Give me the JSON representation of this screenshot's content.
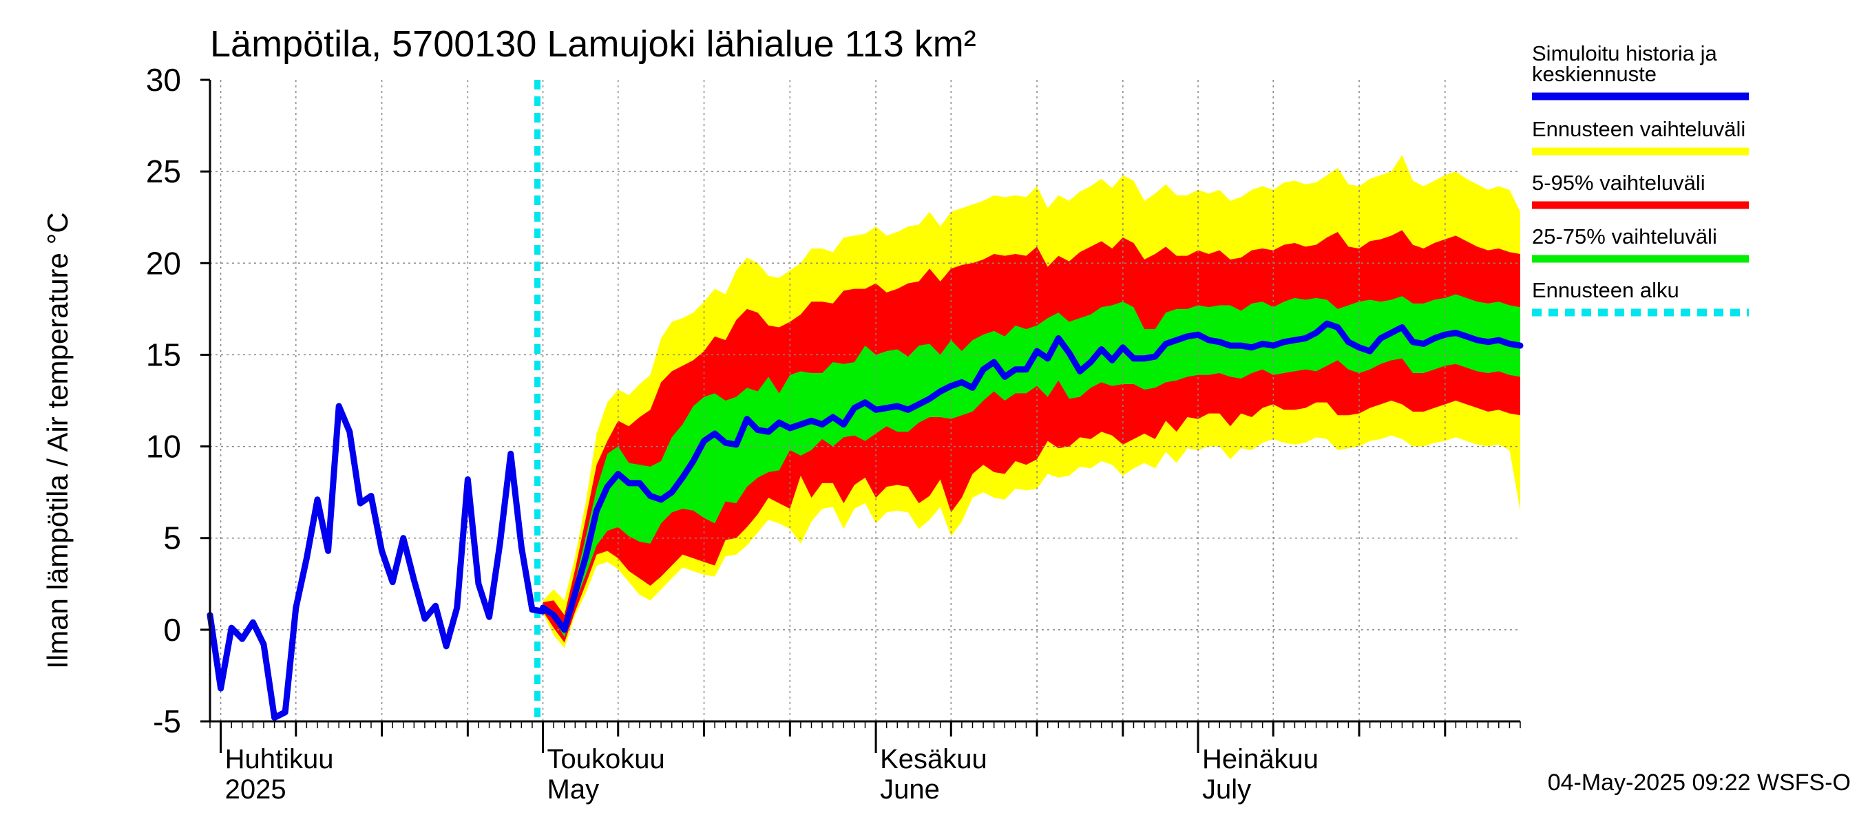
{
  "chart_data": {
    "type": "area",
    "title": "Lämpötila, 5700130 Lamujoki lähialue 113 km²",
    "ylabel": "Ilman lämpötila / Air temperature   °C",
    "ylim": [
      -5,
      30
    ],
    "yticks": [
      -5,
      0,
      5,
      10,
      15,
      20,
      25,
      30
    ],
    "ytick_labels": [
      "-5",
      "0",
      "5",
      "10",
      "15",
      "20",
      "25",
      "30"
    ],
    "xlim": [
      "2025-03-31",
      "2025-07-31"
    ],
    "month_labels": [
      {
        "date": "2025-04-01",
        "fi": "Huhtikuu",
        "en": "2025"
      },
      {
        "date": "2025-05-01",
        "fi": "Toukokuu",
        "en": "May"
      },
      {
        "date": "2025-06-01",
        "fi": "Kesäkuu",
        "en": "June"
      },
      {
        "date": "2025-07-01",
        "fi": "Heinäkuu",
        "en": "July"
      }
    ],
    "forecast_start": "2025-05-01",
    "grid": true,
    "legend_position": "right",
    "legend": [
      {
        "label": "Simuloitu historia ja keskiennuste",
        "color": "#0000ee",
        "style": "solid"
      },
      {
        "label": "Ennusteen vaihteluväli",
        "color": "#ffff00",
        "style": "solid"
      },
      {
        "label": "5-95% vaihteluväli",
        "color": "#ff0000",
        "style": "solid"
      },
      {
        "label": "25-75% vaihteluväli",
        "color": "#00ee00",
        "style": "solid"
      },
      {
        "label": "Ennusteen alku",
        "color": "#00e5ee",
        "style": "dashed"
      }
    ],
    "history": {
      "name": "Simuloitu historia ja keskiennuste",
      "x": [
        "2025-03-31",
        "2025-04-01",
        "2025-04-02",
        "2025-04-03",
        "2025-04-04",
        "2025-04-05",
        "2025-04-06",
        "2025-04-07",
        "2025-04-08",
        "2025-04-09",
        "2025-04-10",
        "2025-04-11",
        "2025-04-12",
        "2025-04-13",
        "2025-04-14",
        "2025-04-15",
        "2025-04-16",
        "2025-04-17",
        "2025-04-18",
        "2025-04-19",
        "2025-04-20",
        "2025-04-21",
        "2025-04-22",
        "2025-04-23",
        "2025-04-24",
        "2025-04-25",
        "2025-04-26",
        "2025-04-27",
        "2025-04-28",
        "2025-04-29",
        "2025-04-30",
        "2025-05-01"
      ],
      "values": [
        0.8,
        -3.2,
        0.1,
        -0.5,
        0.4,
        -0.8,
        -4.8,
        -4.5,
        1.2,
        3.9,
        7.1,
        4.3,
        12.2,
        10.8,
        6.9,
        7.3,
        4.3,
        2.6,
        5.0,
        2.7,
        0.6,
        1.3,
        -0.9,
        1.2,
        8.2,
        2.5,
        0.7,
        4.7,
        9.6,
        4.5,
        1.1,
        1.0
      ]
    },
    "forecast": {
      "x": [
        "2025-05-01",
        "2025-05-02",
        "2025-05-03",
        "2025-05-04",
        "2025-05-05",
        "2025-05-06",
        "2025-05-07",
        "2025-05-08",
        "2025-05-09",
        "2025-05-10",
        "2025-05-11",
        "2025-05-12",
        "2025-05-13",
        "2025-05-14",
        "2025-05-15",
        "2025-05-16",
        "2025-05-17",
        "2025-05-18",
        "2025-05-19",
        "2025-05-20",
        "2025-05-21",
        "2025-05-22",
        "2025-05-23",
        "2025-05-24",
        "2025-05-25",
        "2025-05-26",
        "2025-05-27",
        "2025-05-28",
        "2025-05-29",
        "2025-05-30",
        "2025-05-31",
        "2025-06-01",
        "2025-06-02",
        "2025-06-03",
        "2025-06-04",
        "2025-06-05",
        "2025-06-06",
        "2025-06-07",
        "2025-06-08",
        "2025-06-09",
        "2025-06-10",
        "2025-06-11",
        "2025-06-12",
        "2025-06-13",
        "2025-06-14",
        "2025-06-15",
        "2025-06-16",
        "2025-06-17",
        "2025-06-18",
        "2025-06-19",
        "2025-06-20",
        "2025-06-21",
        "2025-06-22",
        "2025-06-23",
        "2025-06-24",
        "2025-06-25",
        "2025-06-26",
        "2025-06-27",
        "2025-06-28",
        "2025-06-29",
        "2025-06-30",
        "2025-07-01",
        "2025-07-02",
        "2025-07-03",
        "2025-07-04",
        "2025-07-05",
        "2025-07-06",
        "2025-07-07",
        "2025-07-08",
        "2025-07-09",
        "2025-07-10",
        "2025-07-11",
        "2025-07-12",
        "2025-07-13",
        "2025-07-14",
        "2025-07-15",
        "2025-07-16",
        "2025-07-17",
        "2025-07-18",
        "2025-07-19",
        "2025-07-20",
        "2025-07-21",
        "2025-07-22",
        "2025-07-23",
        "2025-07-24",
        "2025-07-25",
        "2025-07-26",
        "2025-07-27",
        "2025-07-28",
        "2025-07-29",
        "2025-07-30",
        "2025-07-31"
      ],
      "median": [
        1.2,
        0.8,
        0.0,
        2.0,
        4.0,
        6.5,
        7.8,
        8.5,
        8.0,
        8.0,
        7.3,
        7.1,
        7.5,
        8.3,
        9.2,
        10.3,
        10.7,
        10.2,
        10.1,
        11.5,
        10.9,
        10.8,
        11.3,
        11.0,
        11.2,
        11.4,
        11.2,
        11.6,
        11.2,
        12.1,
        12.4,
        12.0,
        12.1,
        12.2,
        12.0,
        12.3,
        12.6,
        13.0,
        13.3,
        13.5,
        13.2,
        14.2,
        14.6,
        13.8,
        14.2,
        14.2,
        15.2,
        14.8,
        15.9,
        15.1,
        14.1,
        14.6,
        15.3,
        14.7,
        15.4,
        14.8,
        14.8,
        14.9,
        15.6,
        15.8,
        16.0,
        16.1,
        15.8,
        15.7,
        15.5,
        15.5,
        15.4,
        15.6,
        15.5,
        15.7,
        15.8,
        15.9,
        16.2,
        16.7,
        16.5,
        15.7,
        15.4,
        15.2,
        15.9,
        16.2,
        16.5,
        15.7,
        15.6,
        15.9,
        16.1,
        16.2,
        16.0,
        15.8,
        15.7,
        15.8,
        15.6,
        15.5
      ],
      "p25": [
        1.1,
        0.6,
        -0.4,
        1.5,
        3.0,
        4.6,
        5.4,
        5.6,
        5.1,
        4.8,
        4.7,
        5.8,
        6.4,
        6.6,
        6.5,
        6.1,
        5.8,
        7.0,
        6.9,
        7.8,
        8.3,
        8.6,
        8.7,
        9.8,
        9.5,
        9.8,
        10.4,
        10.0,
        10.5,
        10.6,
        10.3,
        10.7,
        11.1,
        10.8,
        10.8,
        11.3,
        11.6,
        11.6,
        11.5,
        11.7,
        11.9,
        12.5,
        13.0,
        12.5,
        12.9,
        12.9,
        13.3,
        12.7,
        13.6,
        12.6,
        12.7,
        13.2,
        13.5,
        13.3,
        13.4,
        13.4,
        13.1,
        13.2,
        13.5,
        13.6,
        13.8,
        13.9,
        13.9,
        14.0,
        13.8,
        13.7,
        14.0,
        14.2,
        13.9,
        14.0,
        14.1,
        14.2,
        14.1,
        14.4,
        14.7,
        14.2,
        14.0,
        14.2,
        14.5,
        14.7,
        14.8,
        14.0,
        14.0,
        14.2,
        14.4,
        14.5,
        14.3,
        14.1,
        14.0,
        14.1,
        13.9,
        13.8
      ],
      "p75": [
        1.4,
        1.0,
        0.3,
        2.6,
        5.1,
        7.7,
        9.6,
        10.0,
        9.1,
        9.0,
        8.9,
        9.2,
        10.5,
        11.2,
        12.2,
        12.7,
        12.9,
        12.5,
        12.7,
        13.2,
        13.0,
        13.8,
        12.9,
        13.9,
        14.1,
        14.0,
        14.0,
        14.6,
        14.5,
        14.6,
        15.5,
        15.0,
        15.2,
        15.3,
        14.9,
        15.5,
        15.6,
        15.0,
        15.8,
        15.2,
        15.8,
        16.1,
        16.3,
        16.0,
        16.6,
        16.4,
        16.6,
        17.0,
        17.3,
        16.8,
        17.0,
        17.2,
        17.6,
        17.7,
        17.9,
        17.6,
        16.4,
        16.4,
        17.3,
        17.5,
        17.5,
        17.7,
        17.6,
        17.7,
        17.7,
        17.4,
        17.8,
        17.9,
        17.6,
        17.9,
        18.1,
        18.0,
        18.1,
        18.0,
        17.5,
        17.7,
        17.9,
        18.0,
        17.9,
        18.0,
        18.2,
        17.8,
        17.8,
        18.0,
        18.1,
        18.3,
        18.1,
        17.9,
        17.8,
        17.9,
        17.7,
        17.6
      ],
      "p05": [
        1.0,
        0.1,
        -0.7,
        1.0,
        2.5,
        4.1,
        4.3,
        3.9,
        3.2,
        2.8,
        2.4,
        2.9,
        3.5,
        4.1,
        3.9,
        3.7,
        3.5,
        4.9,
        5.0,
        5.6,
        6.3,
        7.2,
        6.9,
        6.6,
        8.4,
        7.2,
        8.0,
        8.0,
        6.9,
        7.9,
        8.3,
        7.2,
        7.8,
        7.9,
        7.8,
        6.9,
        7.3,
        8.2,
        6.4,
        7.2,
        8.5,
        9.0,
        8.6,
        8.5,
        9.2,
        9.0,
        9.3,
        10.3,
        9.9,
        10.0,
        10.5,
        10.4,
        10.8,
        10.6,
        10.1,
        10.4,
        10.7,
        10.4,
        11.4,
        10.8,
        11.6,
        11.5,
        11.8,
        11.8,
        11.1,
        11.8,
        11.6,
        12.1,
        12.3,
        12.0,
        12.0,
        12.1,
        12.4,
        12.4,
        11.7,
        11.7,
        11.8,
        12.1,
        12.3,
        12.5,
        12.3,
        11.9,
        11.9,
        12.1,
        12.3,
        12.5,
        12.3,
        12.1,
        11.9,
        12.0,
        11.8,
        11.7
      ],
      "p95": [
        1.5,
        1.6,
        0.8,
        3.3,
        6.1,
        9.0,
        10.3,
        11.4,
        11.1,
        11.6,
        12.0,
        13.5,
        14.1,
        14.4,
        14.7,
        15.2,
        16.0,
        15.8,
        16.9,
        17.5,
        17.3,
        16.6,
        16.5,
        16.8,
        17.2,
        17.9,
        17.9,
        17.8,
        18.5,
        18.6,
        18.6,
        18.9,
        18.4,
        18.6,
        18.9,
        19.0,
        19.7,
        19.0,
        19.7,
        19.9,
        20.0,
        20.2,
        20.5,
        20.4,
        20.5,
        20.4,
        20.9,
        19.8,
        20.4,
        20.1,
        20.6,
        20.9,
        21.2,
        20.8,
        21.4,
        21.1,
        20.2,
        20.5,
        20.9,
        20.4,
        20.4,
        20.7,
        20.5,
        20.7,
        20.2,
        20.3,
        20.7,
        20.8,
        20.7,
        21.0,
        21.1,
        20.9,
        21.0,
        21.4,
        21.7,
        20.9,
        20.8,
        21.2,
        21.3,
        21.5,
        21.8,
        21.0,
        20.8,
        21.1,
        21.3,
        21.5,
        21.2,
        20.9,
        20.7,
        20.8,
        20.6,
        20.5
      ],
      "min": [
        0.9,
        -0.3,
        -1.0,
        0.8,
        2.0,
        3.5,
        3.7,
        3.3,
        2.6,
        1.9,
        1.6,
        2.2,
        2.8,
        3.4,
        3.2,
        3.0,
        2.9,
        4.0,
        4.1,
        4.6,
        5.3,
        6.0,
        5.8,
        5.5,
        4.7,
        5.9,
        6.6,
        6.7,
        5.5,
        6.6,
        6.9,
        5.8,
        6.4,
        6.5,
        6.4,
        5.5,
        6.0,
        6.7,
        5.1,
        5.9,
        7.2,
        7.5,
        7.2,
        7.1,
        7.7,
        7.6,
        7.7,
        8.5,
        8.3,
        8.4,
        8.9,
        8.8,
        9.2,
        9.0,
        8.4,
        8.8,
        9.1,
        8.8,
        9.7,
        9.1,
        9.9,
        9.8,
        10.0,
        10.0,
        9.3,
        9.9,
        9.8,
        10.2,
        10.4,
        10.2,
        10.1,
        10.2,
        10.5,
        10.4,
        9.8,
        9.9,
        10.0,
        10.3,
        10.4,
        10.6,
        10.4,
        10.0,
        10.0,
        10.2,
        10.3,
        10.5,
        10.3,
        10.1,
        10.0,
        10.1,
        9.8,
        6.5
      ],
      "max": [
        1.6,
        2.2,
        1.6,
        4.0,
        7.0,
        10.7,
        12.4,
        13.1,
        12.8,
        13.4,
        13.9,
        15.9,
        16.8,
        17.0,
        17.3,
        17.9,
        18.6,
        18.3,
        19.6,
        20.3,
        20.0,
        19.3,
        19.2,
        19.6,
        20.0,
        20.8,
        20.8,
        20.6,
        21.4,
        21.5,
        21.6,
        22.0,
        21.5,
        21.7,
        22.0,
        22.1,
        22.8,
        22.0,
        22.8,
        23.0,
        23.2,
        23.4,
        23.7,
        23.6,
        23.7,
        23.6,
        24.2,
        23.0,
        23.7,
        23.4,
        23.9,
        24.2,
        24.6,
        24.1,
        24.8,
        24.5,
        23.4,
        23.8,
        24.3,
        23.7,
        23.7,
        24.0,
        23.8,
        24.0,
        23.4,
        23.6,
        24.0,
        24.2,
        24.0,
        24.4,
        24.5,
        24.3,
        24.4,
        24.8,
        25.2,
        24.3,
        24.2,
        24.6,
        24.8,
        25.0,
        25.9,
        24.5,
        24.2,
        24.5,
        24.8,
        25.0,
        24.6,
        24.3,
        24.0,
        24.2,
        24.0,
        22.8
      ]
    }
  },
  "timestamp": "04-May-2025 09:22 WSFS-O"
}
